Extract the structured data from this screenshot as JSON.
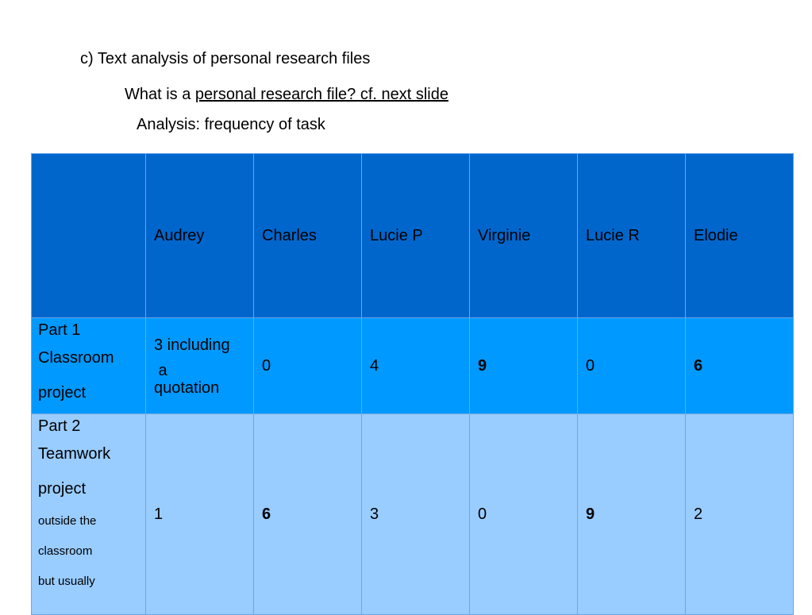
{
  "heading": {
    "line1": "c) Text analysis of personal research files",
    "line2_prefix": "What is a ",
    "line2_link": "personal research file? cf. next slide",
    "line3": "Analysis: frequency of task"
  },
  "table": {
    "columns": [
      "",
      "Audrey",
      "Charles",
      "Lucie P",
      "Virginie",
      "Lucie R",
      "Elodie"
    ],
    "rows": [
      {
        "label_lines": [
          "Part 1",
          "Classroom",
          "project"
        ],
        "label_small_lines": [],
        "audrey_lines": [
          "3 including",
          " a",
          "quotation"
        ],
        "cells": [
          "0",
          "4",
          "9",
          "0",
          "6"
        ],
        "bold": [
          false,
          false,
          true,
          false,
          true
        ]
      },
      {
        "label_lines": [
          "Part 2",
          "Teamwork",
          "project"
        ],
        "label_small_lines": [
          "outside the",
          "classroom",
          "but usually"
        ],
        "audrey": "1",
        "cells": [
          "6",
          "3",
          "0",
          "9",
          "2"
        ],
        "bold": [
          true,
          false,
          false,
          true,
          false
        ]
      }
    ]
  }
}
